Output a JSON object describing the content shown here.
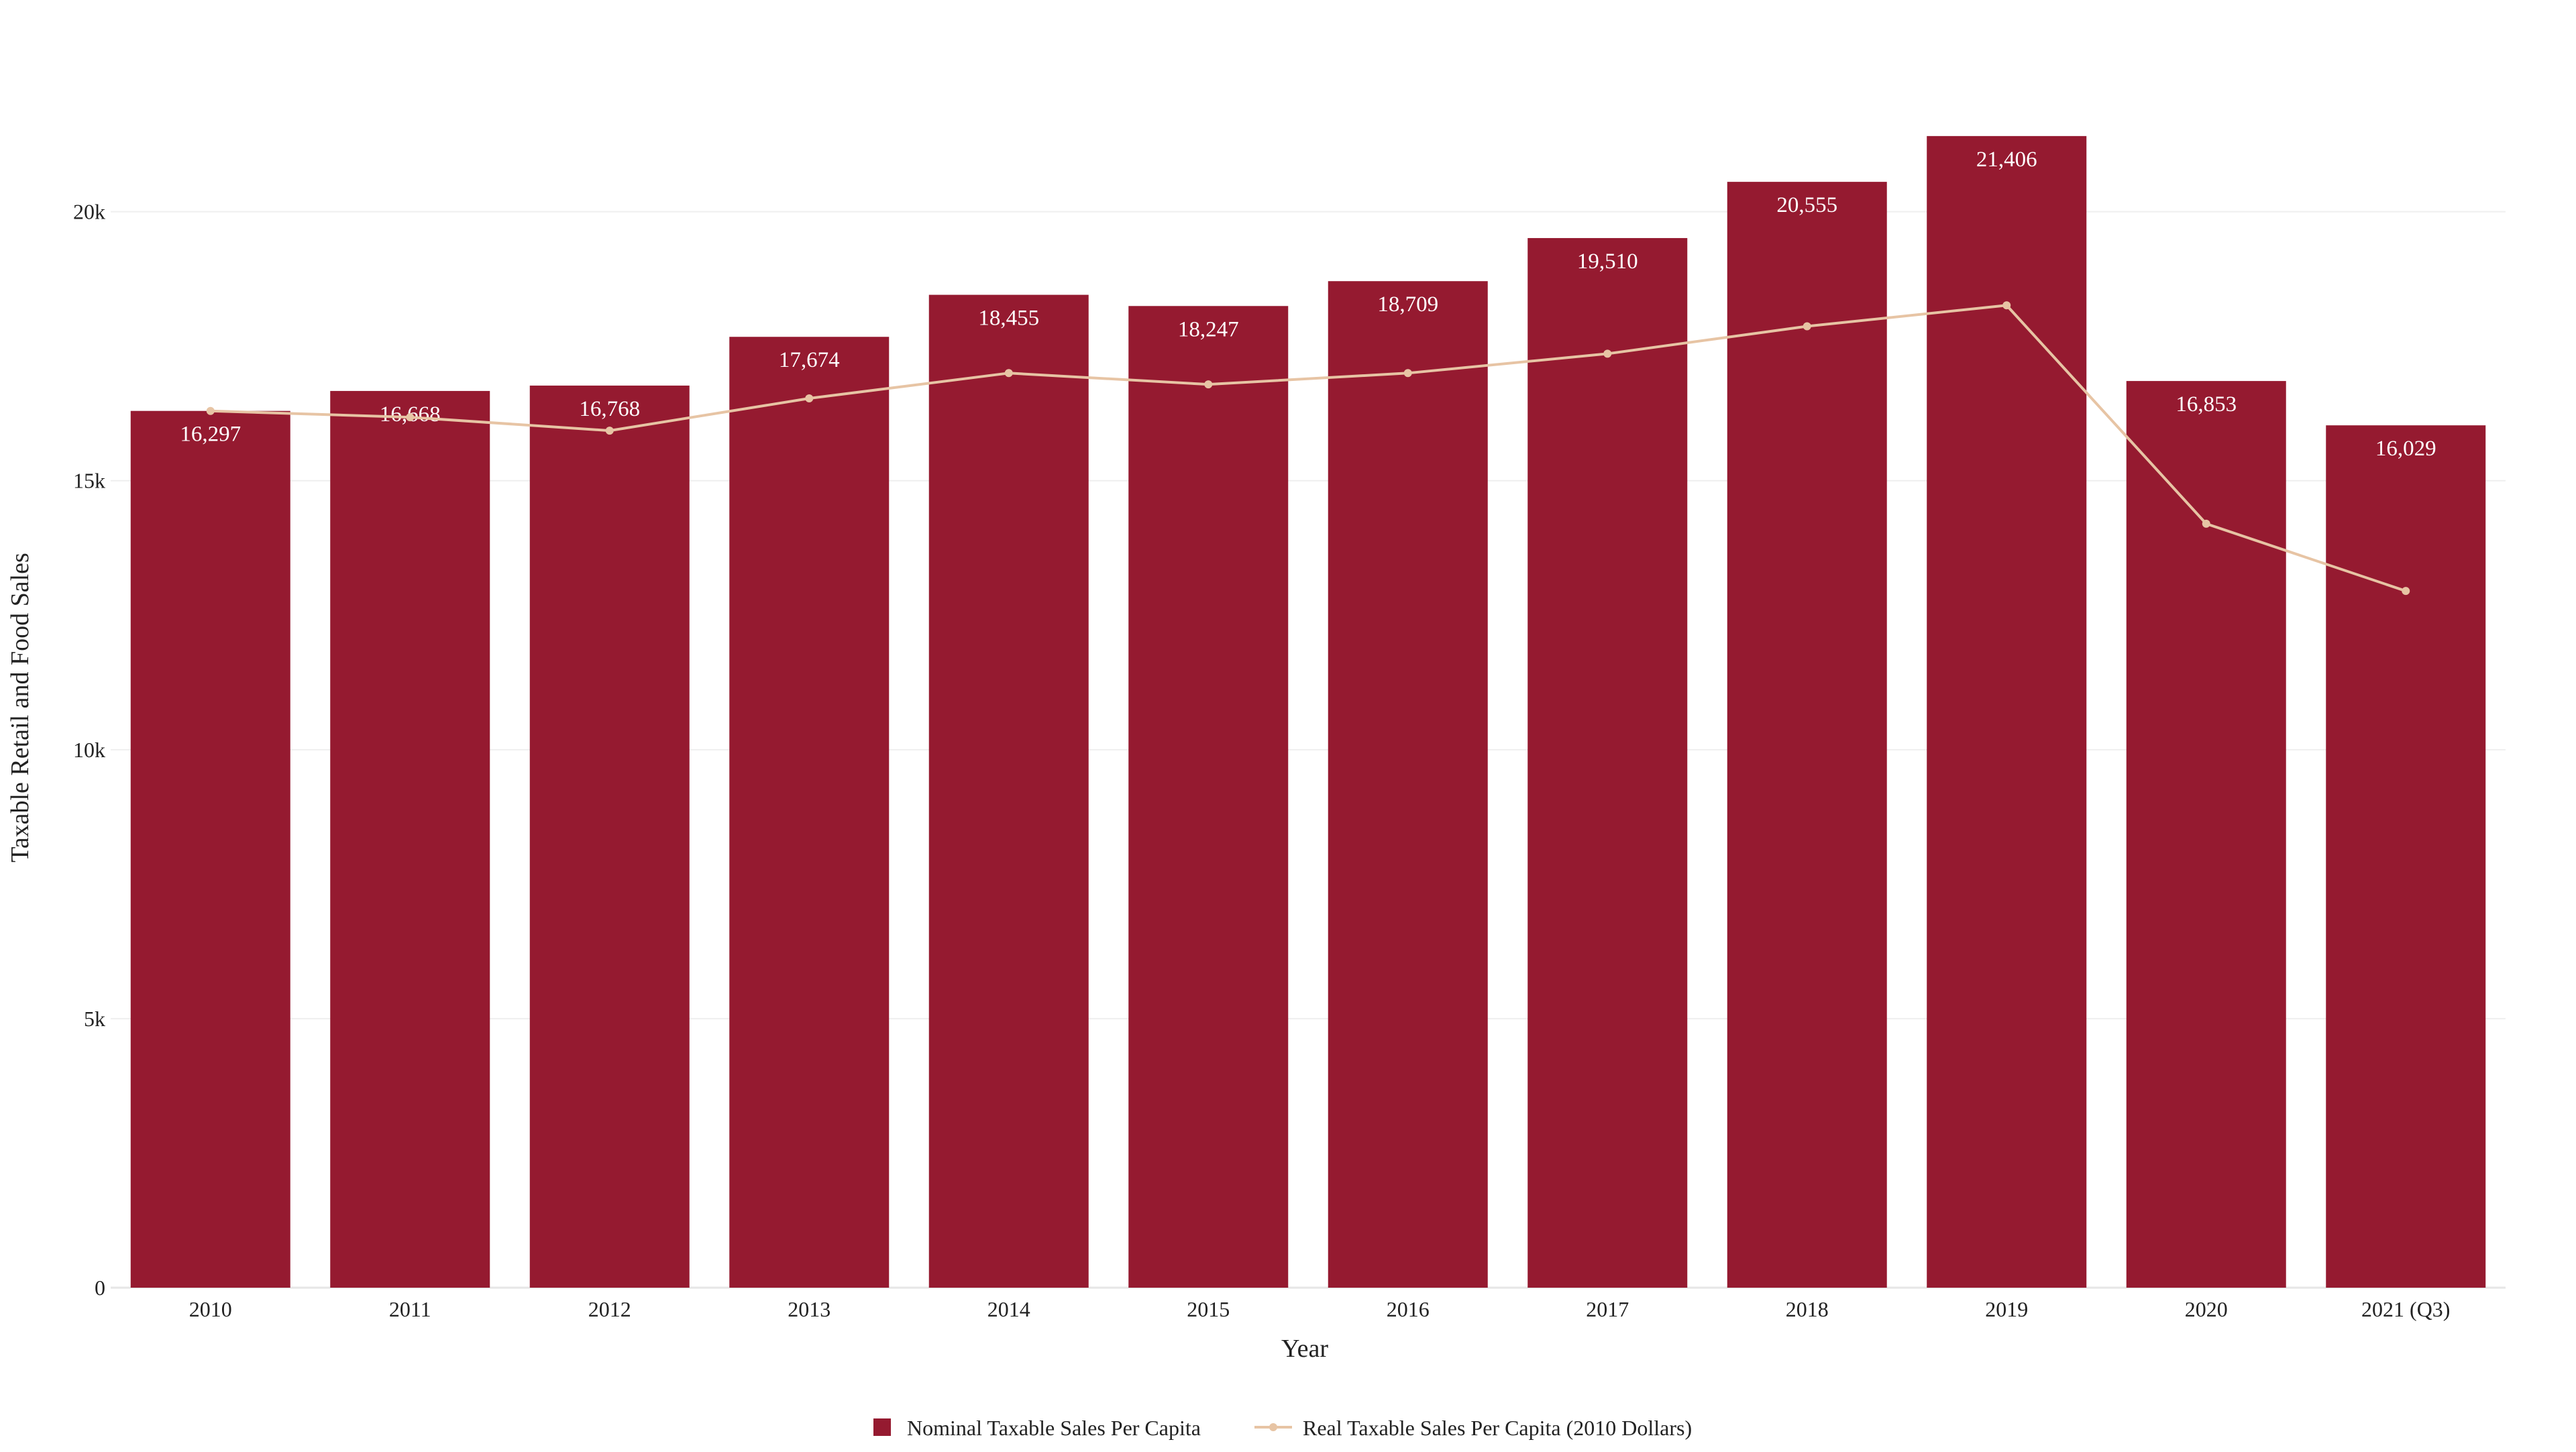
{
  "chart_data": {
    "type": "bar",
    "title": "",
    "xlabel": "Year",
    "ylabel": "Taxable Retail and Food Sales",
    "categories": [
      "2010",
      "2011",
      "2012",
      "2013",
      "2014",
      "2015",
      "2016",
      "2017",
      "2018",
      "2019",
      "2020",
      "2021 (Q3)"
    ],
    "ylim": [
      0,
      23000
    ],
    "yticks": [
      0,
      5000,
      10000,
      15000,
      20000
    ],
    "ytick_labels": [
      "0",
      "5k",
      "10k",
      "15k",
      "20k"
    ],
    "grid": true,
    "legend_position": "bottom",
    "series": [
      {
        "name": "Nominal Taxable Sales Per Capita",
        "type": "bar",
        "color": "#951a30",
        "values": [
          16297,
          16668,
          16768,
          17674,
          18455,
          18247,
          18709,
          19510,
          20555,
          21406,
          16853,
          16029
        ],
        "data_labels": [
          "16,297",
          "16,668",
          "16,768",
          "17,674",
          "18,455",
          "18,247",
          "18,709",
          "19,510",
          "20,555",
          "21,406",
          "16,853",
          "16,029"
        ]
      },
      {
        "name": "Real Taxable Sales Per Capita (2010 Dollars)",
        "type": "line",
        "color": "#e7c4a4",
        "values": [
          16297,
          16180,
          15930,
          16530,
          17000,
          16790,
          17000,
          17360,
          17870,
          18260,
          14200,
          12950
        ]
      }
    ]
  }
}
